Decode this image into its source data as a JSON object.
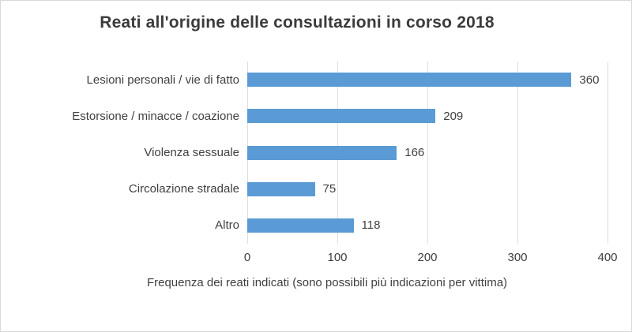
{
  "colors": {
    "bar": "#5b9bd5",
    "gridline": "#dedede",
    "text": "#404040",
    "title": "#3b3b3b",
    "frame_border": "#d9d9d9"
  },
  "chart_data": {
    "type": "bar",
    "orientation": "horizontal",
    "title": "Reati all'origine delle consultazioni in corso 2018",
    "categories": [
      "Lesioni personali / vie di fatto",
      "Estorsione / minacce / coazione",
      "Violenza sessuale",
      "Circolazione stradale",
      "Altro"
    ],
    "values": [
      360,
      209,
      166,
      75,
      118
    ],
    "xlabel": "Frequenza dei reati indicati (sono possibili più indicazioni per vittima)",
    "ylabel": "",
    "xlim": [
      0,
      400
    ],
    "xticks": [
      0,
      100,
      200,
      300,
      400
    ],
    "grid": true,
    "legend": false,
    "data_labels": true
  }
}
